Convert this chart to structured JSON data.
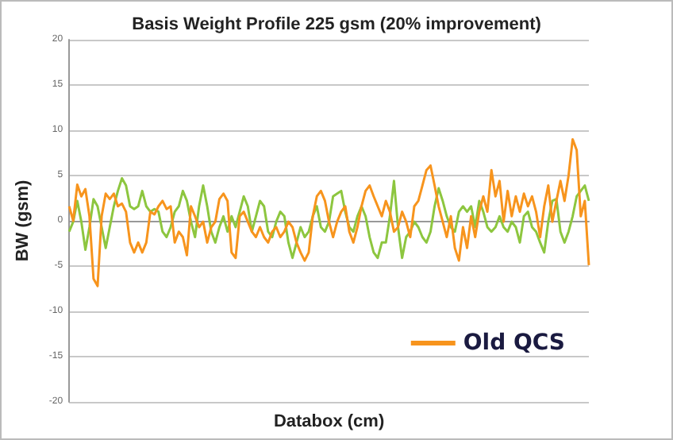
{
  "chart_data": {
    "type": "line",
    "title": "Basis Weight Profile 225 gsm (20% improvement)",
    "xlabel": "Databox (cm)",
    "ylabel": "BW (gsm)",
    "categories": [
      null,
      null,
      null,
      null,
      null,
      null,
      null,
      null,
      null,
      null,
      null,
      null,
      null,
      null,
      null,
      null,
      null,
      null,
      null,
      null,
      null,
      null,
      null,
      null,
      null,
      null,
      null,
      null,
      null,
      null,
      null,
      null,
      null,
      null,
      null,
      null,
      null,
      null,
      null,
      null,
      null,
      null,
      null,
      null,
      null,
      null,
      null,
      null,
      null,
      null,
      null,
      null,
      null,
      null,
      null,
      null,
      null,
      null,
      null,
      null,
      null,
      null,
      null,
      null,
      null,
      null,
      null,
      null,
      null,
      null,
      null,
      null,
      null,
      null,
      null,
      null,
      null,
      null,
      null,
      null,
      null,
      null,
      null,
      null,
      null,
      null,
      null,
      null,
      null,
      null,
      null,
      null,
      null,
      null,
      null,
      null,
      null,
      null,
      null,
      null,
      null,
      null,
      null,
      null,
      null,
      null,
      null,
      null,
      null,
      null,
      null,
      null,
      null,
      null,
      null,
      null,
      null,
      null,
      null,
      null,
      null,
      null,
      null,
      null,
      null,
      null,
      null,
      null,
      null
    ],
    "ylim": [
      -20,
      20
    ],
    "yticks": [
      -20,
      -15,
      -10,
      -5,
      0,
      5,
      10,
      15,
      20
    ],
    "grid": "y",
    "tick_labels": "y",
    "legend": "bottom right",
    "marker": "none",
    "series": [
      {
        "color": "#8dc63f",
        "values": [
          -1.2,
          -0.1,
          2.2,
          -0.1,
          -3.2,
          -0.7,
          2.4,
          1.6,
          -0.7,
          -3,
          -0.7,
          1.6,
          3.3,
          4.7,
          3.9,
          1.6,
          1.3,
          1.6,
          3.3,
          1.6,
          1,
          1.3,
          1,
          -1.2,
          -1.8,
          -0.7,
          1,
          1.6,
          3.3,
          2.2,
          -0.1,
          -1.8,
          1.6,
          3.9,
          1.6,
          -1.2,
          -2.4,
          -0.7,
          0.5,
          -1.2,
          0.5,
          -0.7,
          1,
          2.7,
          1.6,
          -1.2,
          0.5,
          2.2,
          1.6,
          -1.2,
          -1.8,
          -0.1,
          1,
          0.5,
          -2.4,
          -4.1,
          -2.4,
          -0.7,
          -1.8,
          -1.2,
          0.5,
          1.6,
          -0.7,
          -1.2,
          -0.1,
          2.7,
          3,
          3.3,
          1,
          -0.7,
          -1.2,
          0.5,
          1.6,
          0.5,
          -1.8,
          -3.5,
          -4.1,
          -2.4,
          -2.4,
          0.5,
          4.4,
          -0.7,
          -4.1,
          -1.8,
          -1.2,
          -0.1,
          -0.7,
          -1.8,
          -2.4,
          -1.2,
          1.6,
          3.6,
          2.2,
          0.5,
          -0.7,
          -1.2,
          1,
          1.6,
          1,
          1.6,
          -0.7,
          2.2,
          1,
          -0.7,
          -1.2,
          -0.7,
          0.5,
          -0.7,
          -1.2,
          -0.1,
          -0.7,
          -2.4,
          0.5,
          1,
          -0.7,
          -1.2,
          -2.4,
          -3.5,
          -0.1,
          2.2,
          2.4,
          -1.2,
          -2.4,
          -1.2,
          0.5,
          2.7,
          3.3,
          3.9,
          2.2
        ]
      },
      {
        "name": "Old QCS",
        "color": "#f7941d",
        "values": [
          1.6,
          0,
          4,
          2.7,
          3.5,
          0.5,
          -6.4,
          -7.2,
          0.5,
          3,
          2.4,
          3,
          1.6,
          1.9,
          1,
          -2.4,
          -3.5,
          -2.4,
          -3.5,
          -2.4,
          1,
          0.7,
          1.6,
          2.2,
          1.3,
          1.6,
          -2.4,
          -1.2,
          -1.8,
          -3.8,
          1.6,
          0.5,
          -0.7,
          -0.1,
          -2.4,
          -0.7,
          -0.1,
          2.4,
          3,
          2.2,
          -3.5,
          -4.1,
          0.5,
          1,
          -0.1,
          -1.2,
          -1.8,
          -0.7,
          -1.8,
          -2.4,
          -1.2,
          -0.7,
          -1.8,
          -1.2,
          -0.1,
          -0.7,
          -2.4,
          -3.5,
          -4.4,
          -3.5,
          0.5,
          2.7,
          3.3,
          2.2,
          -0.1,
          -1.8,
          -0.1,
          1,
          1.6,
          -1.2,
          -2.4,
          -0.7,
          1.6,
          3.3,
          3.9,
          2.7,
          1.6,
          0.5,
          2.2,
          1,
          -1.2,
          -0.7,
          1,
          -0.1,
          -1.8,
          1.6,
          2.2,
          3.9,
          5.6,
          6.1,
          3.9,
          1.6,
          -0.1,
          -1.8,
          0.5,
          -3,
          -4.4,
          -0.7,
          -3,
          0.5,
          -1.8,
          1,
          2.7,
          1,
          5.6,
          2.7,
          4.4,
          -0.1,
          3.3,
          0.5,
          2.7,
          1,
          3,
          1.6,
          2.7,
          1,
          -1.8,
          1.6,
          3.9,
          -0.1,
          2.2,
          4.4,
          2.2,
          5,
          9,
          7.8,
          0.5,
          2.2,
          -4.9
        ]
      }
    ]
  }
}
